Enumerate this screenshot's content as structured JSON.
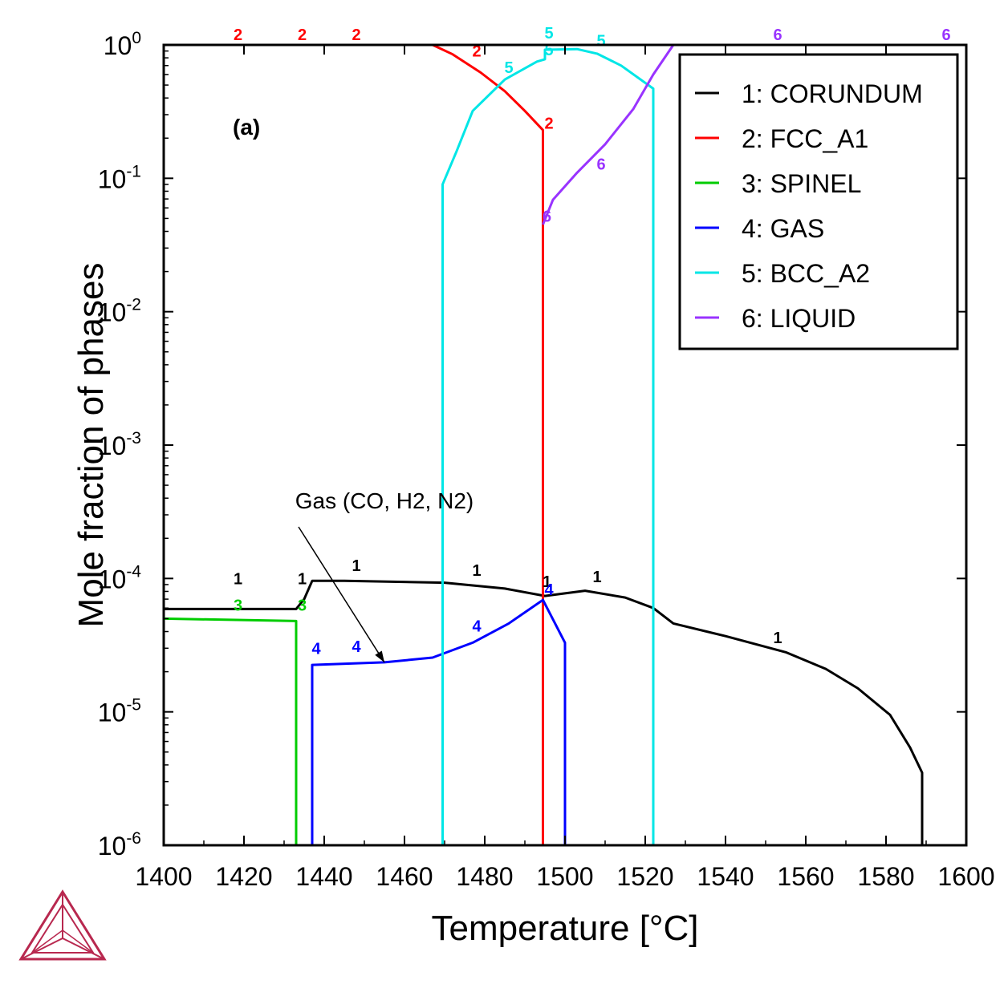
{
  "chart_data": {
    "type": "line",
    "title": "",
    "panel_label": "(a)",
    "xlabel": "Temperature [°C]",
    "ylabel": "Mole fraction of phases",
    "xlim": [
      1400,
      1600
    ],
    "ylim": [
      1e-06,
      1
    ],
    "y_scale": "log",
    "x_ticks": [
      1400,
      1420,
      1440,
      1460,
      1480,
      1500,
      1520,
      1540,
      1560,
      1580,
      1600
    ],
    "y_ticks": [
      {
        "value": 1e-06,
        "base": "10",
        "exp": "-6"
      },
      {
        "value": 1e-05,
        "base": "10",
        "exp": "-5"
      },
      {
        "value": 0.0001,
        "base": "10",
        "exp": "-4"
      },
      {
        "value": 0.001,
        "base": "10",
        "exp": "-3"
      },
      {
        "value": 0.01,
        "base": "10",
        "exp": "-2"
      },
      {
        "value": 0.1,
        "base": "10",
        "exp": "-1"
      },
      {
        "value": 1,
        "base": "10",
        "exp": "0"
      }
    ],
    "grid": false,
    "legend_position": "top-right",
    "series": [
      {
        "id": "1",
        "name": "1: CORUNDUM",
        "color": "#000000",
        "points": [
          [
            1400,
            5.9e-05
          ],
          [
            1433,
            5.9e-05
          ],
          [
            1435,
            7e-05
          ],
          [
            1437,
            9.6e-05
          ],
          [
            1445,
            9.6e-05
          ],
          [
            1470,
            9.3e-05
          ],
          [
            1485,
            8.4e-05
          ],
          [
            1495,
            7.4e-05
          ],
          [
            1505,
            8.1e-05
          ],
          [
            1515,
            7.2e-05
          ],
          [
            1522,
            6e-05
          ],
          [
            1527,
            4.6e-05
          ],
          [
            1540,
            3.7e-05
          ],
          [
            1555,
            2.8e-05
          ],
          [
            1565,
            2.1e-05
          ],
          [
            1573,
            1.5e-05
          ],
          [
            1581,
            9.5e-06
          ],
          [
            1586,
            5.4e-06
          ],
          [
            1589,
            3.5e-06
          ],
          [
            1589,
            1e-06
          ]
        ],
        "markers": [
          [
            1418.5,
            0.0001
          ],
          [
            1434.5,
            0.0001
          ],
          [
            1448,
            0.000125
          ],
          [
            1478,
            0.000115
          ],
          [
            1495.5,
            9.5e-05
          ],
          [
            1508,
            0.000103
          ],
          [
            1553,
            3.6e-05
          ]
        ]
      },
      {
        "id": "2",
        "name": "2: FCC_A1",
        "color": "#ff0000",
        "points": [
          [
            1467,
            1
          ],
          [
            1472,
            0.85
          ],
          [
            1479,
            0.62
          ],
          [
            1485,
            0.45
          ],
          [
            1490,
            0.32
          ],
          [
            1494.5,
            0.23
          ],
          [
            1494.5,
            1e-06
          ]
        ],
        "markers": [
          [
            1418.5,
            1.2
          ],
          [
            1434.5,
            1.2
          ],
          [
            1448,
            1.2
          ],
          [
            1478,
            0.9
          ],
          [
            1496,
            0.26
          ]
        ]
      },
      {
        "id": "3",
        "name": "3: SPINEL",
        "color": "#00cc00",
        "points": [
          [
            1400,
            5e-05
          ],
          [
            1433,
            4.8e-05
          ],
          [
            1433,
            1e-06
          ]
        ],
        "markers": [
          [
            1418.5,
            6.3e-05
          ],
          [
            1434.5,
            6.3e-05
          ]
        ]
      },
      {
        "id": "4",
        "name": "4: GAS",
        "color": "#0000ff",
        "points": [
          [
            1437,
            1e-06
          ],
          [
            1437,
            2.25e-05
          ],
          [
            1455,
            2.35e-05
          ],
          [
            1467,
            2.55e-05
          ],
          [
            1477,
            3.3e-05
          ],
          [
            1486,
            4.6e-05
          ],
          [
            1494.5,
            6.9e-05
          ],
          [
            1500,
            3.3e-05
          ],
          [
            1500,
            1e-06
          ]
        ],
        "markers": [
          [
            1438,
            3e-05
          ],
          [
            1448,
            3.1e-05
          ],
          [
            1478,
            4.4e-05
          ],
          [
            1496,
            8.3e-05
          ]
        ]
      },
      {
        "id": "5",
        "name": "5: BCC_A2",
        "color": "#00e6e6",
        "points": [
          [
            1469.5,
            1e-06
          ],
          [
            1469.5,
            0.09
          ],
          [
            1473,
            0.16
          ],
          [
            1477,
            0.32
          ],
          [
            1485,
            0.55
          ],
          [
            1493,
            0.75
          ],
          [
            1495,
            0.78
          ],
          [
            1495,
            0.92
          ],
          [
            1503,
            0.93
          ],
          [
            1508,
            0.86
          ],
          [
            1514,
            0.7
          ],
          [
            1522,
            0.47
          ],
          [
            1522,
            1e-06
          ]
        ],
        "markers": [
          [
            1486,
            0.68
          ],
          [
            1496,
            1.23
          ],
          [
            1496,
            0.92
          ],
          [
            1509,
            1.08
          ]
        ]
      },
      {
        "id": "6",
        "name": "6: LIQUID",
        "color": "#9933ff",
        "points": [
          [
            1494.5,
            0.045
          ],
          [
            1497,
            0.069
          ],
          [
            1503,
            0.11
          ],
          [
            1510,
            0.18
          ],
          [
            1517,
            0.33
          ],
          [
            1522,
            0.6
          ],
          [
            1527,
            1
          ]
        ],
        "markers": [
          [
            1495.5,
            0.052
          ],
          [
            1509,
            0.128
          ],
          [
            1553,
            1.2
          ],
          [
            1595,
            1.2
          ]
        ]
      }
    ],
    "annotations": [
      {
        "text": "Gas (CO, H2, N2)",
        "points_to": [
          1455,
          2.35e-05
        ],
        "label_at": [
          1455,
          0.0003
        ]
      }
    ]
  },
  "logo": "thermo-calc-triangle-logo"
}
